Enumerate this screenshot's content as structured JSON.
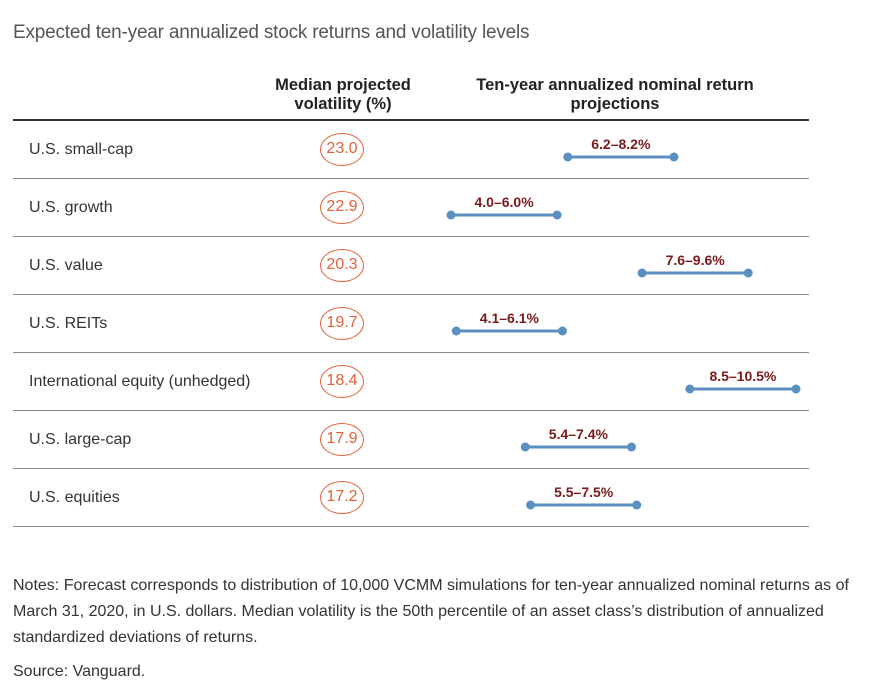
{
  "title": "Expected ten-year annualized stock returns and volatility levels",
  "headers": {
    "volatility": "Median projected volatility (%)",
    "returns": "Ten-year annualized nominal return projections"
  },
  "chart_data": {
    "type": "table",
    "rows": [
      {
        "label": "U.S. small-cap",
        "volatility": "23.0",
        "range_label": "6.2–8.2%",
        "low": 6.2,
        "high": 8.2
      },
      {
        "label": "U.S. growth",
        "volatility": "22.9",
        "range_label": "4.0–6.0%",
        "low": 4.0,
        "high": 6.0
      },
      {
        "label": "U.S. value",
        "volatility": "20.3",
        "range_label": "7.6–9.6%",
        "low": 7.6,
        "high": 9.6
      },
      {
        "label": "U.S. REITs",
        "volatility": "19.7",
        "range_label": "4.1–6.1%",
        "low": 4.1,
        "high": 6.1
      },
      {
        "label": "International equity (unhedged)",
        "volatility": "18.4",
        "range_label": "8.5–10.5%",
        "low": 8.5,
        "high": 10.5
      },
      {
        "label": "U.S. large-cap",
        "volatility": "17.9",
        "range_label": "5.4–7.4%",
        "low": 5.4,
        "high": 7.4
      },
      {
        "label": "U.S. equities",
        "volatility": "17.2",
        "range_label": "5.5–7.5%",
        "low": 5.5,
        "high": 7.5
      }
    ],
    "colors": {
      "range_line": "#5b8fc0",
      "range_label": "#7b1a1a",
      "volatility_circle": "#e0613a"
    }
  },
  "notes": "Notes: Forecast corresponds to distribution of 10,000 VCMM simulations for ten-year annualized nominal returns as of March 31, 2020, in U.S. dollars. Median volatility is the 50th percentile of an asset class’s distribution of annualized standardized deviations of returns.",
  "source": "Source: Vanguard."
}
